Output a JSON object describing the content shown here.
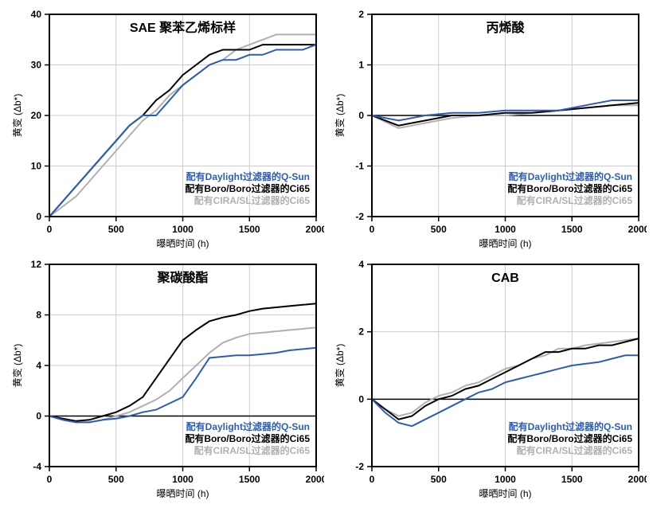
{
  "global": {
    "xlabel": "曝晒时间 (h)",
    "ylabel": "黄变 (Δb*)",
    "legend_labels": {
      "qsun": "配有Daylight过滤器的Q-Sun",
      "ci65_boro": "配有Boro/Boro过滤器的Ci65",
      "ci65_cira": "配有CIRA/SL过滤器的Ci65"
    },
    "series_colors": {
      "qsun": "#2b5db8",
      "ci65_boro": "#000000",
      "ci65_cira": "#b0b0b0"
    },
    "background_color": "#ffffff",
    "grid_color": "#cccccc",
    "axis_color": "#000000",
    "line_width": 2,
    "tick_fontsize": 12,
    "title_fontsize": 16,
    "label_fontsize": 12
  },
  "panels": [
    {
      "title": "SAE 聚苯乙烯标样",
      "type": "line",
      "xlim": [
        0,
        2000
      ],
      "xtick_step": 500,
      "ylim": [
        0,
        40
      ],
      "ytick_step": 10,
      "zero_line": false,
      "x": [
        0,
        100,
        200,
        300,
        400,
        500,
        600,
        700,
        800,
        900,
        1000,
        1100,
        1200,
        1300,
        1400,
        1500,
        1600,
        1700,
        1800,
        1900,
        2000
      ],
      "series": {
        "qsun": [
          0,
          3,
          6,
          9,
          12,
          15,
          18,
          20,
          20,
          23,
          26,
          28,
          30,
          31,
          31,
          32,
          32,
          33,
          33,
          33,
          34
        ],
        "ci65_boro": [
          0,
          3,
          6,
          9,
          12,
          15,
          18,
          20,
          23,
          25,
          28,
          30,
          32,
          33,
          33,
          33,
          34,
          34,
          34,
          34,
          34
        ],
        "ci65_cira": [
          0,
          2,
          4,
          7,
          10,
          13,
          16,
          19,
          21,
          24,
          26,
          28,
          30,
          31,
          33,
          34,
          35,
          36,
          36,
          36,
          36
        ]
      }
    },
    {
      "title": "丙烯酸",
      "type": "line",
      "xlim": [
        0,
        2000
      ],
      "xtick_step": 500,
      "ylim": [
        -2,
        2
      ],
      "ytick_step": 1,
      "zero_line": true,
      "x": [
        0,
        200,
        400,
        600,
        800,
        1000,
        1200,
        1400,
        1600,
        1800,
        2000
      ],
      "series": {
        "qsun": [
          0,
          -0.1,
          0,
          0.05,
          0.05,
          0.1,
          0.1,
          0.1,
          0.2,
          0.3,
          0.3
        ],
        "ci65_boro": [
          0,
          -0.2,
          -0.1,
          0,
          0,
          0.05,
          0.05,
          0.1,
          0.15,
          0.2,
          0.25
        ],
        "ci65_cira": [
          0,
          -0.25,
          -0.15,
          -0.05,
          0,
          0,
          0.05,
          0.1,
          0.15,
          0.2,
          0.2
        ]
      }
    },
    {
      "title": "聚碳酸酯",
      "type": "line",
      "xlim": [
        0,
        2000
      ],
      "xtick_step": 500,
      "ylim": [
        -4,
        12
      ],
      "ytick_step": 4,
      "zero_line": true,
      "x": [
        0,
        100,
        200,
        300,
        400,
        500,
        600,
        700,
        800,
        900,
        1000,
        1100,
        1200,
        1300,
        1400,
        1500,
        1600,
        1700,
        1800,
        1900,
        2000
      ],
      "series": {
        "qsun": [
          0,
          -0.3,
          -0.5,
          -0.5,
          -0.3,
          -0.2,
          0,
          0.3,
          0.5,
          1,
          1.5,
          3,
          4.6,
          4.7,
          4.8,
          4.8,
          4.9,
          5,
          5.2,
          5.3,
          5.4
        ],
        "ci65_boro": [
          0,
          -0.2,
          -0.4,
          -0.3,
          0,
          0.3,
          0.8,
          1.5,
          3,
          4.5,
          6,
          6.8,
          7.5,
          7.8,
          8,
          8.3,
          8.5,
          8.6,
          8.7,
          8.8,
          8.9
        ],
        "ci65_cira": [
          0,
          -0.3,
          -0.5,
          -0.5,
          -0.3,
          0,
          0.3,
          0.8,
          1.3,
          2,
          3,
          4,
          5,
          5.8,
          6.2,
          6.5,
          6.6,
          6.7,
          6.8,
          6.9,
          7
        ]
      }
    },
    {
      "title": "CAB",
      "type": "line",
      "xlim": [
        0,
        2000
      ],
      "xtick_step": 500,
      "ylim": [
        -2,
        4
      ],
      "ytick_step": 2,
      "zero_line": true,
      "x": [
        0,
        100,
        200,
        300,
        400,
        500,
        600,
        700,
        800,
        900,
        1000,
        1100,
        1200,
        1300,
        1400,
        1500,
        1600,
        1700,
        1800,
        1900,
        2000
      ],
      "series": {
        "qsun": [
          0,
          -0.4,
          -0.7,
          -0.8,
          -0.6,
          -0.4,
          -0.2,
          0,
          0.2,
          0.3,
          0.5,
          0.6,
          0.7,
          0.8,
          0.9,
          1,
          1.05,
          1.1,
          1.2,
          1.3,
          1.3
        ],
        "ci65_boro": [
          0,
          -0.3,
          -0.6,
          -0.5,
          -0.2,
          0,
          0.1,
          0.3,
          0.4,
          0.6,
          0.8,
          1,
          1.2,
          1.4,
          1.4,
          1.5,
          1.5,
          1.6,
          1.6,
          1.7,
          1.8
        ],
        "ci65_cira": [
          0,
          -0.3,
          -0.5,
          -0.4,
          -0.1,
          0.1,
          0.2,
          0.4,
          0.5,
          0.7,
          0.9,
          1,
          1.2,
          1.3,
          1.5,
          1.5,
          1.6,
          1.65,
          1.7,
          1.75,
          1.8
        ]
      }
    }
  ]
}
